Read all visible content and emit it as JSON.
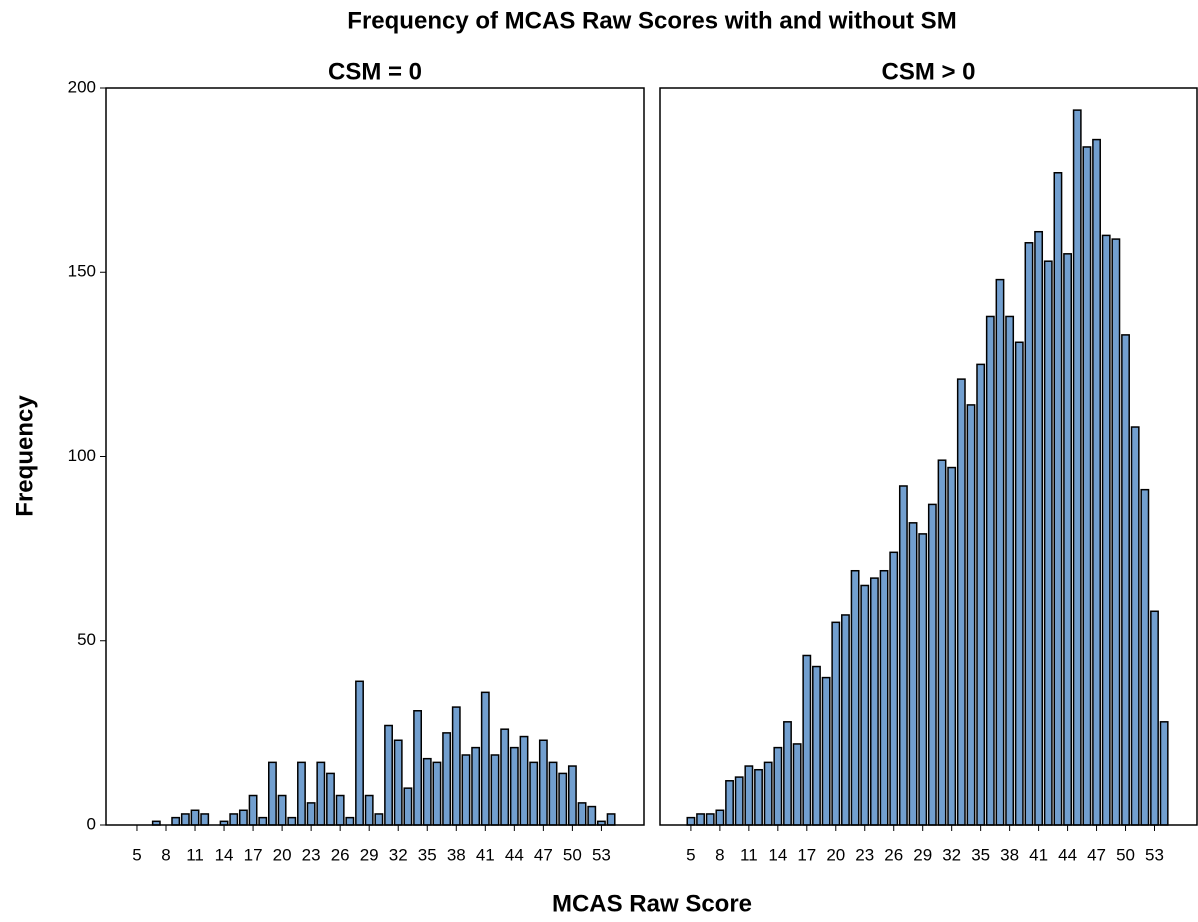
{
  "title": "Frequency of MCAS Raw Scores with and without SM",
  "x_label": "MCAS Raw Score",
  "y_label": "Frequency",
  "chart_data": [
    {
      "type": "bar",
      "title": "CSM = 0",
      "color": "#729fcf",
      "x": [
        7,
        9,
        10,
        11,
        12,
        14,
        15,
        16,
        17,
        18,
        19,
        20,
        21,
        22,
        23,
        24,
        25,
        26,
        27,
        28,
        29,
        30,
        31,
        32,
        33,
        34,
        35,
        36,
        37,
        38,
        39,
        40,
        41,
        42,
        43,
        44,
        45,
        46,
        47,
        48,
        49,
        50,
        51,
        52,
        53,
        54
      ],
      "values": [
        1,
        2,
        3,
        4,
        3,
        1,
        3,
        4,
        8,
        2,
        17,
        8,
        2,
        17,
        6,
        17,
        14,
        8,
        2,
        39,
        8,
        3,
        27,
        23,
        10,
        31,
        18,
        17,
        25,
        32,
        19,
        21,
        36,
        19,
        26,
        21,
        24,
        17,
        23,
        17,
        14,
        16,
        6,
        5,
        1,
        3
      ],
      "xlim": [
        1.8,
        57.4
      ],
      "xticks": [
        5,
        8,
        11,
        14,
        17,
        20,
        23,
        26,
        29,
        32,
        35,
        38,
        41,
        44,
        47,
        50,
        53
      ],
      "ylim": [
        0,
        200
      ],
      "yticks": [
        0,
        50,
        100,
        150,
        200
      ]
    },
    {
      "type": "bar",
      "title": "CSM > 0",
      "color": "#729fcf",
      "x": [
        5,
        6,
        7,
        8,
        9,
        10,
        11,
        12,
        13,
        14,
        15,
        16,
        17,
        18,
        19,
        20,
        21,
        22,
        23,
        24,
        25,
        26,
        27,
        28,
        29,
        30,
        31,
        32,
        33,
        34,
        35,
        36,
        37,
        38,
        39,
        40,
        41,
        42,
        43,
        44,
        45,
        46,
        47,
        48,
        49,
        50,
        51,
        52,
        53,
        54
      ],
      "values": [
        2,
        3,
        3,
        4,
        12,
        13,
        16,
        15,
        17,
        21,
        28,
        22,
        46,
        43,
        40,
        55,
        57,
        69,
        65,
        67,
        69,
        74,
        92,
        82,
        79,
        87,
        99,
        97,
        121,
        114,
        125,
        138,
        148,
        138,
        131,
        158,
        161,
        153,
        177,
        155,
        194,
        184,
        186,
        160,
        159,
        133,
        108,
        91,
        58,
        28
      ],
      "xlim": [
        1.8,
        57.4
      ],
      "xticks": [
        5,
        8,
        11,
        14,
        17,
        20,
        23,
        26,
        29,
        32,
        35,
        38,
        41,
        44,
        47,
        50,
        53
      ],
      "ylim": [
        0,
        200
      ]
    }
  ]
}
